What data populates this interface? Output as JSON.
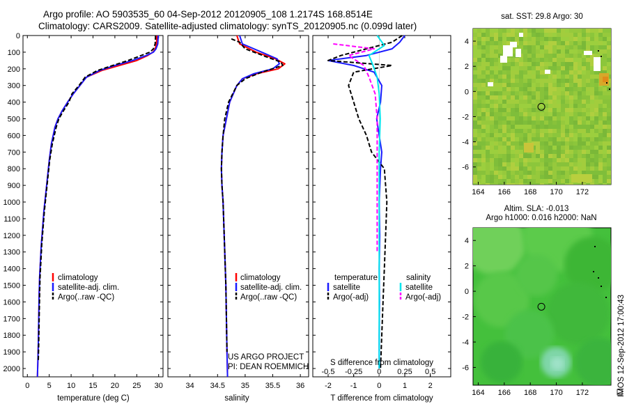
{
  "header": {
    "line1": "Argo profile: AO 5903535_60 04-Sep-2012 20120905_108 1.2174S 168.8514E",
    "line2": "Climatology: CARS2009. Satellite-adjusted climatology: synTS_20120905.nc (0.099d later)"
  },
  "credits": {
    "project": "US ARGO PROJECT",
    "pi": "PI: DEAN ROEMMICH",
    "vertical": "IMOS 12-Sep-2012 17:00:43"
  },
  "colors": {
    "climatology": "#ff0000",
    "satellite": "#1a1aff",
    "argo": "#000000",
    "sal_satellite": "#00e5ee",
    "sal_argo": "#ff00ff"
  },
  "chart_data": [
    {
      "type": "line",
      "name": "temperature-panel",
      "xlabel": "temperature (deg C)",
      "ylabel": "",
      "xlim": [
        -1,
        31
      ],
      "ylim": [
        2050,
        0
      ],
      "xticks": [
        "0",
        "5",
        "10",
        "15",
        "20",
        "25",
        "30"
      ],
      "yticks": [
        "0",
        "100",
        "200",
        "300",
        "400",
        "500",
        "600",
        "700",
        "800",
        "900",
        "1000",
        "1100",
        "1200",
        "1300",
        "1400",
        "1500",
        "1600",
        "1700",
        "1800",
        "1900",
        "2000"
      ],
      "legend": [
        "climatology",
        "satellite-adj. clim.",
        "Argo(..raw -QC)"
      ],
      "series": [
        {
          "name": "climatology",
          "color": "#ff0000",
          "x": [
            29.6,
            29.5,
            29.2,
            28.7,
            27.5,
            25.0,
            21.0,
            17.0,
            13.5,
            12.0,
            10.5,
            9.2,
            8.0,
            7.0,
            6.3,
            5.5,
            5.0,
            4.6,
            4.2,
            3.8,
            3.5,
            3.2,
            3.0,
            2.8,
            2.7,
            2.6,
            2.5,
            2.4,
            2.3
          ],
          "y": [
            0,
            50,
            80,
            100,
            120,
            150,
            180,
            210,
            250,
            300,
            350,
            400,
            450,
            500,
            550,
            650,
            750,
            850,
            950,
            1050,
            1150,
            1250,
            1350,
            1450,
            1550,
            1700,
            1850,
            1950,
            2050
          ]
        },
        {
          "name": "satellite-adj. clim.",
          "color": "#1a1aff",
          "x": [
            29.9,
            29.8,
            29.4,
            28.8,
            27.2,
            24.0,
            20.0,
            16.5,
            13.5,
            12.0,
            10.5,
            9.2,
            8.0,
            7.0,
            6.3,
            5.5,
            5.0,
            4.6,
            4.2,
            3.8,
            3.5,
            3.2,
            3.0,
            2.8,
            2.7,
            2.6,
            2.5,
            2.4,
            2.3
          ],
          "y": [
            0,
            50,
            80,
            100,
            120,
            150,
            180,
            210,
            250,
            300,
            350,
            400,
            450,
            500,
            550,
            650,
            750,
            850,
            950,
            1050,
            1150,
            1250,
            1350,
            1450,
            1550,
            1700,
            1850,
            1950,
            2050
          ]
        },
        {
          "name": "Argo(..raw -QC)",
          "color": "#000000",
          "dash": true,
          "x": [
            29.3,
            29.2,
            28.8,
            28.0,
            26.0,
            23.0,
            19.5,
            16.0,
            13.2,
            11.8,
            10.2,
            9.5,
            8.3,
            7.2,
            6.6,
            5.7,
            5.1,
            4.7,
            4.3,
            3.9,
            3.6,
            3.3,
            3.1,
            2.9,
            2.8,
            2.7,
            2.6,
            2.5
          ],
          "y": [
            0,
            50,
            80,
            100,
            120,
            150,
            180,
            210,
            250,
            300,
            350,
            400,
            450,
            500,
            550,
            650,
            750,
            850,
            950,
            1050,
            1150,
            1250,
            1350,
            1450,
            1550,
            1700,
            1850,
            1950
          ]
        }
      ]
    },
    {
      "type": "line",
      "name": "salinity-panel",
      "xlabel": "salinity",
      "ylabel": "",
      "xlim": [
        33.6,
        36.15
      ],
      "ylim": [
        2050,
        0
      ],
      "xticks": [
        "34",
        "34.5",
        "35",
        "35.5",
        "36"
      ],
      "legend": [
        "climatology",
        "satellite-adj. clim.",
        "Argo(..raw -QC)"
      ],
      "series": [
        {
          "name": "climatology",
          "color": "#ff0000",
          "x": [
            34.85,
            34.9,
            35.2,
            35.55,
            35.72,
            35.6,
            35.2,
            34.95,
            34.85,
            34.72,
            34.66,
            34.6,
            34.58,
            34.57,
            34.58,
            34.6,
            34.61,
            34.62,
            34.63,
            34.64,
            34.65,
            34.66,
            34.67,
            34.68
          ],
          "y": [
            0,
            50,
            100,
            140,
            170,
            200,
            230,
            260,
            300,
            400,
            500,
            600,
            700,
            800,
            900,
            1000,
            1100,
            1200,
            1300,
            1400,
            1500,
            1700,
            1900,
            2050
          ]
        },
        {
          "name": "satellite-adj. clim.",
          "color": "#1a1aff",
          "x": [
            34.9,
            34.95,
            35.3,
            35.58,
            35.62,
            35.5,
            35.15,
            34.95,
            34.85,
            34.72,
            34.66,
            34.6,
            34.58,
            34.57,
            34.58,
            34.6,
            34.61,
            34.62,
            34.63,
            34.64,
            34.65,
            34.66,
            34.67,
            34.68
          ],
          "y": [
            0,
            50,
            100,
            140,
            170,
            200,
            230,
            260,
            300,
            400,
            500,
            600,
            700,
            800,
            900,
            1000,
            1100,
            1200,
            1300,
            1400,
            1500,
            1700,
            1900,
            2050
          ]
        },
        {
          "name": "Argo(..raw -QC)",
          "color": "#000000",
          "dash": true,
          "x": [
            34.75,
            34.9,
            35.0,
            35.4,
            35.65,
            35.68,
            35.3,
            35.0,
            34.85,
            34.7,
            34.63,
            34.6,
            34.58,
            34.57,
            34.58,
            34.6,
            34.61,
            34.62,
            34.63,
            34.64,
            34.65,
            34.66,
            34.67
          ],
          "y": [
            20,
            40,
            80,
            130,
            160,
            180,
            220,
            260,
            300,
            400,
            500,
            600,
            700,
            800,
            900,
            1000,
            1100,
            1200,
            1300,
            1400,
            1500,
            1700,
            1900
          ]
        }
      ]
    },
    {
      "type": "line",
      "name": "difference-panel",
      "xlabel": "T difference from climatology",
      "xlabel_top": "S difference from climatology",
      "xlim": [
        -2.6,
        2.8
      ],
      "ylim": [
        2050,
        0
      ],
      "xticks": [
        "-2",
        "-1",
        "0",
        "1",
        "2"
      ],
      "xticks_top": [
        "-0.5",
        "-0.25",
        "0",
        "0.25",
        "0.5"
      ],
      "legend_headers": [
        "temperature",
        "salinity"
      ],
      "legend": [
        "satellite",
        "Argo(-adj)",
        "satellite",
        "Argo(-adj)"
      ],
      "series": [
        {
          "name": "T satellite",
          "color": "#1a1aff",
          "x": [
            1.0,
            0.8,
            0.5,
            -0.5,
            -2.0,
            -1.0,
            -0.2,
            0.1,
            0.05,
            -0.1,
            0.0,
            0.1,
            0.05,
            0.0,
            0.02,
            0.0,
            0.01,
            0.0,
            0.0
          ],
          "y": [
            0,
            40,
            80,
            120,
            150,
            180,
            220,
            300,
            400,
            500,
            600,
            700,
            800,
            1000,
            1200,
            1400,
            1600,
            1800,
            2000
          ]
        },
        {
          "name": "T Argo(-adj)",
          "color": "#000000",
          "dash": true,
          "x": [
            0.9,
            0.5,
            -0.5,
            -1.5,
            -2.0,
            0.5,
            -1.0,
            -1.2,
            -1.0,
            -0.8,
            -0.5,
            -0.3,
            0.2,
            0.3,
            0.25,
            0.2,
            0.15,
            0.1,
            0.05
          ],
          "y": [
            0,
            40,
            80,
            120,
            150,
            180,
            220,
            300,
            400,
            500,
            600,
            700,
            800,
            1000,
            1200,
            1400,
            1600,
            1800,
            2000
          ]
        },
        {
          "name": "S satellite",
          "color": "#00e5ee",
          "x": [
            -0.02,
            0.05,
            -0.1,
            -0.06,
            -0.02,
            0.0,
            0.01,
            0.0,
            0.0,
            0.0,
            0.0,
            0.0,
            0.0
          ],
          "y": [
            0,
            60,
            120,
            180,
            250,
            350,
            500,
            700,
            900,
            1200,
            1500,
            1800,
            2000
          ]
        },
        {
          "name": "S Argo(-adj)",
          "color": "#ff00ff",
          "dash": true,
          "x": [
            -0.45,
            -0.05,
            -0.3,
            -0.15,
            -0.1,
            -0.04,
            -0.02,
            -0.02,
            -0.02,
            -0.02,
            -0.02
          ],
          "y": [
            50,
            80,
            120,
            180,
            250,
            350,
            500,
            700,
            900,
            1100,
            1300
          ]
        }
      ]
    },
    {
      "type": "heatmap",
      "name": "sst-map",
      "title": "sat. SST: 29.8 Argo: 30",
      "xlim": [
        163.6,
        174.2
      ],
      "ylim": [
        -7.4,
        5.0
      ],
      "xticks": [
        "164",
        "166",
        "168",
        "170",
        "172"
      ],
      "yticks": [
        "4",
        "2",
        "0",
        "-2",
        "-4",
        "-6"
      ],
      "marker": {
        "lon": 168.85,
        "lat": -1.22
      }
    },
    {
      "type": "heatmap",
      "name": "sla-map",
      "title": "Altim. SLA: -0.013",
      "subtitle": "Argo h1000: 0.016 h2000: NaN",
      "xlim": [
        163.6,
        174.2
      ],
      "ylim": [
        -7.4,
        5.0
      ],
      "xticks": [
        "164",
        "166",
        "168",
        "170",
        "172"
      ],
      "yticks": [
        "4",
        "2",
        "0",
        "-2",
        "-4",
        "-6"
      ],
      "marker": {
        "lon": 168.85,
        "lat": -1.22
      }
    }
  ]
}
